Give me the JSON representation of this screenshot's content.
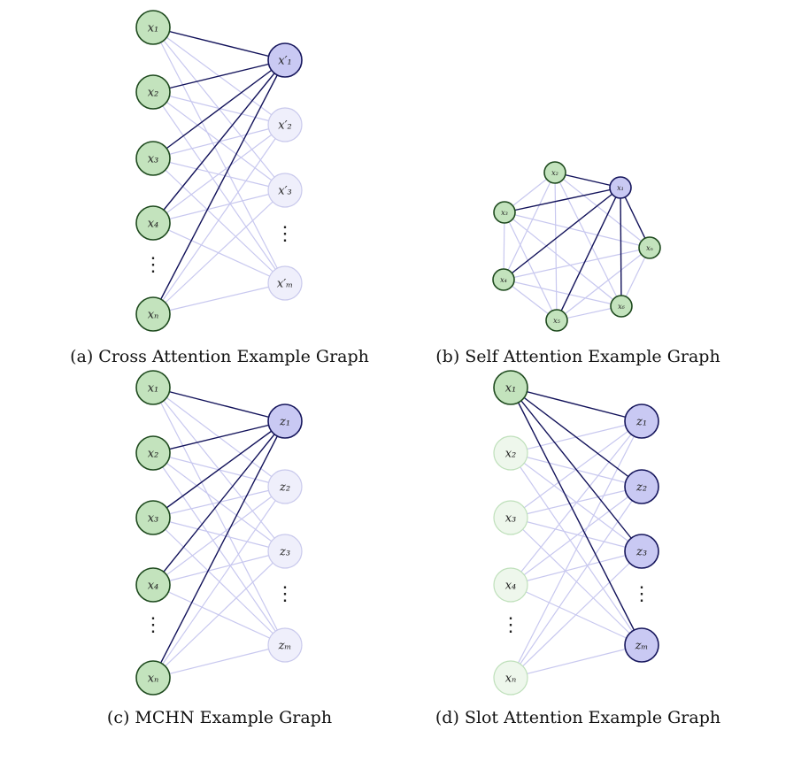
{
  "colors": {
    "green_fill": "#c3e3bd",
    "green_fill_faded": "#eef7ec",
    "green_stroke": "#1e4a1e",
    "green_stroke_faded": "#bfe0bb",
    "blue_fill": "#c9c9f3",
    "blue_fill_faded": "#efeffb",
    "blue_stroke": "#16165c",
    "blue_stroke_faded": "#c9c9ec",
    "edge_dark": "#12125a",
    "edge_light": "#c8c8ef"
  },
  "panels": [
    {
      "id": "a",
      "caption": "(a) Cross Attention Example Graph",
      "left_labels": [
        "x₁",
        "x₂",
        "x₃",
        "x₄",
        "xₙ"
      ],
      "right_labels": [
        "x′₁",
        "x′₂",
        "x′₃",
        "x′ₘ"
      ],
      "left_ellipsis": "⋮",
      "right_ellipsis": "⋮",
      "left_faded": [
        false,
        false,
        false,
        false,
        false
      ],
      "right_faded": [
        false,
        true,
        true,
        true
      ],
      "dark_edges": "all left to right node 1"
    },
    {
      "id": "b",
      "caption": "(b) Self Attention Example Graph",
      "nodes": [
        "x₁",
        "x₂",
        "x₃",
        "x₄",
        "x₅",
        "x₆",
        "xₙ"
      ],
      "highlighted": "x₁",
      "dark_edges": "all edges incident to x₁"
    },
    {
      "id": "c",
      "caption": "(c) MCHN Example Graph",
      "left_labels": [
        "x₁",
        "x₂",
        "x₃",
        "x₄",
        "xₙ"
      ],
      "right_labels": [
        "z₁",
        "z₂",
        "z₃",
        "zₘ"
      ],
      "left_ellipsis": "⋮",
      "right_ellipsis": "⋮",
      "left_faded": [
        false,
        false,
        false,
        false,
        false
      ],
      "right_faded": [
        false,
        true,
        true,
        true
      ],
      "dark_edges": "all left to right node 1"
    },
    {
      "id": "d",
      "caption": "(d) Slot Attention Example Graph",
      "left_labels": [
        "x₁",
        "x₂",
        "x₃",
        "x₄",
        "xₙ"
      ],
      "right_labels": [
        "z₁",
        "z₂",
        "z₃",
        "zₘ"
      ],
      "left_ellipsis": "⋮",
      "right_ellipsis": "⋮",
      "left_faded": [
        false,
        true,
        true,
        true,
        true
      ],
      "right_faded": [
        false,
        false,
        false,
        false
      ],
      "dark_edges": "left node 1 to all right"
    }
  ]
}
